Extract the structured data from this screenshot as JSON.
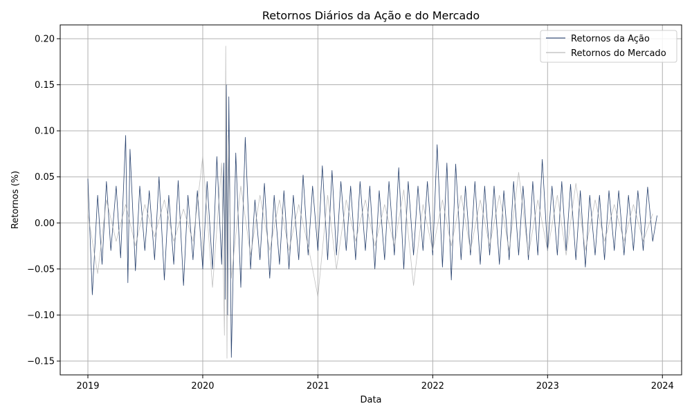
{
  "chart_data": {
    "type": "line",
    "title": "Retornos Diários da Ação e do Mercado",
    "xlabel": "Data",
    "ylabel": "Retornos (%)",
    "x_range": [
      "2018-10-05",
      "2024-03-02"
    ],
    "ylim": [
      -0.165,
      0.215
    ],
    "x_ticks": [
      {
        "date": "2019-01-01",
        "label": "2019"
      },
      {
        "date": "2020-01-01",
        "label": "2020"
      },
      {
        "date": "2021-01-01",
        "label": "2021"
      },
      {
        "date": "2022-01-01",
        "label": "2022"
      },
      {
        "date": "2023-01-01",
        "label": "2023"
      },
      {
        "date": "2024-01-01",
        "label": "2024"
      }
    ],
    "y_ticks": [
      {
        "value": -0.15,
        "label": "−0.15"
      },
      {
        "value": -0.1,
        "label": "−0.10"
      },
      {
        "value": -0.05,
        "label": "−0.05"
      },
      {
        "value": 0.0,
        "label": "0.00"
      },
      {
        "value": 0.05,
        "label": "0.05"
      },
      {
        "value": 0.1,
        "label": "0.10"
      },
      {
        "value": 0.15,
        "label": "0.15"
      },
      {
        "value": 0.2,
        "label": "0.20"
      }
    ],
    "grid": true,
    "legend_position": "top-right",
    "series": [
      {
        "name": "Retornos da Ação",
        "color": "#0d2a5c",
        "x": [
          "2019-01-01",
          "2019-01-15",
          "2019-02-01",
          "2019-02-15",
          "2019-03-01",
          "2019-03-15",
          "2019-04-01",
          "2019-04-15",
          "2019-05-01",
          "2019-05-08",
          "2019-05-15",
          "2019-06-01",
          "2019-06-15",
          "2019-07-01",
          "2019-07-15",
          "2019-08-01",
          "2019-08-15",
          "2019-09-01",
          "2019-09-15",
          "2019-10-01",
          "2019-10-15",
          "2019-11-01",
          "2019-11-15",
          "2019-12-01",
          "2019-12-15",
          "2020-01-01",
          "2020-01-15",
          "2020-02-01",
          "2020-02-15",
          "2020-03-01",
          "2020-03-08",
          "2020-03-12",
          "2020-03-16",
          "2020-03-20",
          "2020-03-24",
          "2020-04-01",
          "2020-04-15",
          "2020-05-01",
          "2020-05-15",
          "2020-06-01",
          "2020-06-15",
          "2020-07-01",
          "2020-07-15",
          "2020-08-01",
          "2020-08-15",
          "2020-09-01",
          "2020-09-15",
          "2020-10-01",
          "2020-10-15",
          "2020-11-01",
          "2020-11-15",
          "2020-12-01",
          "2020-12-15",
          "2021-01-01",
          "2021-01-15",
          "2021-02-01",
          "2021-02-15",
          "2021-03-01",
          "2021-03-15",
          "2021-04-01",
          "2021-04-15",
          "2021-05-01",
          "2021-05-15",
          "2021-06-01",
          "2021-06-15",
          "2021-07-01",
          "2021-07-15",
          "2021-08-01",
          "2021-08-15",
          "2021-09-01",
          "2021-09-15",
          "2021-10-01",
          "2021-10-15",
          "2021-11-01",
          "2021-11-15",
          "2021-12-01",
          "2021-12-15",
          "2022-01-01",
          "2022-01-15",
          "2022-02-01",
          "2022-02-15",
          "2022-03-01",
          "2022-03-15",
          "2022-04-01",
          "2022-04-15",
          "2022-05-01",
          "2022-05-15",
          "2022-06-01",
          "2022-06-15",
          "2022-07-01",
          "2022-07-15",
          "2022-08-01",
          "2022-08-15",
          "2022-09-01",
          "2022-09-15",
          "2022-10-01",
          "2022-10-15",
          "2022-11-01",
          "2022-11-15",
          "2022-12-01",
          "2022-12-15",
          "2023-01-01",
          "2023-01-15",
          "2023-02-01",
          "2023-02-15",
          "2023-03-01",
          "2023-03-15",
          "2023-04-01",
          "2023-04-15",
          "2023-05-01",
          "2023-05-15",
          "2023-06-01",
          "2023-06-15",
          "2023-07-01",
          "2023-07-15",
          "2023-08-01",
          "2023-08-15",
          "2023-09-01",
          "2023-09-15",
          "2023-10-01",
          "2023-10-15",
          "2023-11-01",
          "2023-11-15",
          "2023-12-01",
          "2023-12-15"
        ],
        "values": [
          0.048,
          -0.078,
          0.03,
          -0.045,
          0.045,
          -0.03,
          0.04,
          -0.038,
          0.095,
          -0.065,
          0.08,
          -0.052,
          0.04,
          -0.03,
          0.035,
          -0.04,
          0.05,
          -0.062,
          0.03,
          -0.045,
          0.046,
          -0.068,
          0.03,
          -0.04,
          0.035,
          -0.05,
          0.045,
          -0.05,
          0.072,
          -0.045,
          0.065,
          -0.083,
          0.15,
          -0.1,
          0.137,
          -0.146,
          0.076,
          -0.07,
          0.093,
          -0.05,
          0.025,
          -0.04,
          0.043,
          -0.06,
          0.03,
          -0.045,
          0.035,
          -0.05,
          0.03,
          -0.04,
          0.052,
          -0.035,
          0.04,
          -0.03,
          0.062,
          -0.04,
          0.057,
          -0.035,
          0.045,
          -0.03,
          0.04,
          -0.04,
          0.045,
          -0.03,
          0.04,
          -0.05,
          0.035,
          -0.04,
          0.045,
          -0.035,
          0.06,
          -0.05,
          0.045,
          -0.035,
          0.04,
          -0.03,
          0.045,
          -0.035,
          0.085,
          -0.048,
          0.065,
          -0.062,
          0.064,
          -0.04,
          0.04,
          -0.035,
          0.045,
          -0.045,
          0.04,
          -0.035,
          0.04,
          -0.045,
          0.035,
          -0.04,
          0.045,
          -0.035,
          0.04,
          -0.04,
          0.045,
          -0.035,
          0.069,
          -0.03,
          0.04,
          -0.035,
          0.045,
          -0.03,
          0.042,
          -0.04,
          0.035,
          -0.048,
          0.03,
          -0.035,
          0.03,
          -0.04,
          0.035,
          -0.03,
          0.035,
          -0.035,
          0.03,
          -0.03,
          0.035,
          -0.03,
          0.039,
          -0.02,
          0.008
        ]
      },
      {
        "name": "Retornos do Mercado",
        "color": "#a9a9a9",
        "x": [
          "2019-01-01",
          "2019-02-01",
          "2019-03-01",
          "2019-04-01",
          "2019-05-01",
          "2019-06-01",
          "2019-07-01",
          "2019-08-01",
          "2019-09-01",
          "2019-10-01",
          "2019-11-01",
          "2019-12-01",
          "2020-01-01",
          "2020-02-01",
          "2020-03-01",
          "2020-03-10",
          "2020-03-14",
          "2020-03-18",
          "2020-03-22",
          "2020-04-01",
          "2020-05-01",
          "2020-06-01",
          "2020-07-01",
          "2020-08-01",
          "2020-09-01",
          "2020-10-01",
          "2020-11-01",
          "2020-12-01",
          "2021-01-01",
          "2021-02-01",
          "2021-03-01",
          "2021-04-01",
          "2021-05-01",
          "2021-06-01",
          "2021-07-01",
          "2021-08-01",
          "2021-09-01",
          "2021-10-01",
          "2021-11-01",
          "2021-12-01",
          "2022-01-01",
          "2022-02-01",
          "2022-03-01",
          "2022-04-01",
          "2022-05-01",
          "2022-06-01",
          "2022-07-01",
          "2022-08-01",
          "2022-09-01",
          "2022-10-01",
          "2022-11-01",
          "2022-12-01",
          "2023-01-01",
          "2023-02-01",
          "2023-03-01",
          "2023-04-01",
          "2023-05-01",
          "2023-06-01",
          "2023-07-01",
          "2023-08-01",
          "2023-09-01",
          "2023-10-01",
          "2023-11-01",
          "2023-12-01"
        ],
        "values": [
          0.01,
          -0.055,
          0.025,
          -0.02,
          0.02,
          -0.025,
          0.02,
          -0.015,
          0.025,
          -0.02,
          0.015,
          -0.02,
          0.072,
          -0.07,
          0.065,
          -0.122,
          0.192,
          -0.147,
          0.095,
          -0.06,
          0.04,
          -0.035,
          0.03,
          -0.03,
          0.025,
          -0.03,
          0.02,
          -0.025,
          -0.08,
          0.03,
          -0.05,
          0.025,
          -0.02,
          0.025,
          -0.025,
          0.02,
          -0.025,
          0.036,
          -0.068,
          0.02,
          -0.03,
          0.025,
          -0.025,
          0.03,
          -0.03,
          0.025,
          -0.025,
          0.03,
          -0.03,
          0.055,
          -0.035,
          0.025,
          -0.03,
          0.03,
          -0.035,
          0.043,
          -0.03,
          0.025,
          -0.02,
          0.02,
          -0.02,
          0.02,
          -0.02,
          0.01
        ]
      }
    ]
  }
}
